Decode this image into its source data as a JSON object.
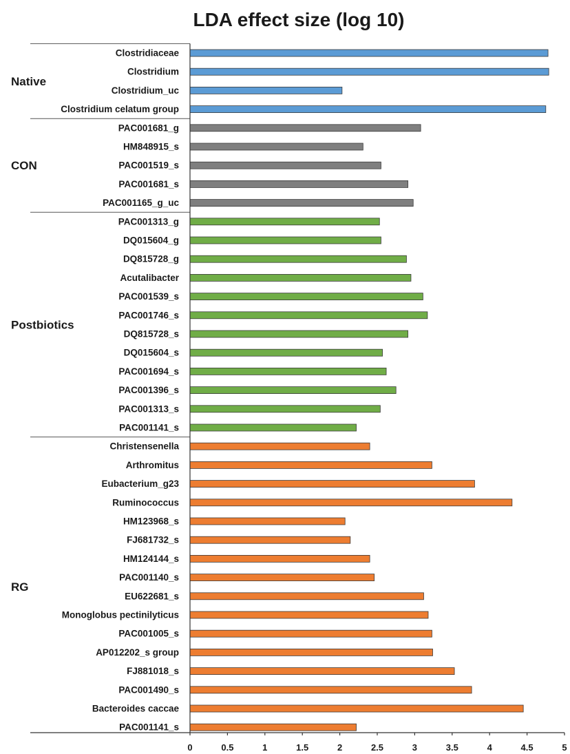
{
  "chart_data": {
    "type": "bar",
    "orientation": "horizontal",
    "title": "LDA effect size (log 10)",
    "xlim": [
      0,
      5
    ],
    "xticks": [
      "0",
      "0.5",
      "1",
      "1.5",
      "2",
      "2.5",
      "3",
      "3.5",
      "4",
      "4.5",
      "5"
    ],
    "legend": "none",
    "grid": false,
    "groups": [
      {
        "name": "Native",
        "color": "#5b9bd5",
        "items": [
          {
            "label": "Clostridiaceae",
            "value": 4.78
          },
          {
            "label": "Clostridium",
            "value": 4.79
          },
          {
            "label": "Clostridium_uc",
            "value": 2.03
          },
          {
            "label": "Clostridium celatum group",
            "value": 4.75
          }
        ]
      },
      {
        "name": "CON",
        "color": "#7f7f7f",
        "items": [
          {
            "label": "PAC001681_g",
            "value": 3.08
          },
          {
            "label": "HM848915_s",
            "value": 2.31
          },
          {
            "label": "PAC001519_s",
            "value": 2.55
          },
          {
            "label": "PAC001681_s",
            "value": 2.91
          },
          {
            "label": "PAC001165_g_uc",
            "value": 2.98
          }
        ]
      },
      {
        "name": "Postbiotics",
        "color": "#70ad47",
        "items": [
          {
            "label": "PAC001313_g",
            "value": 2.53
          },
          {
            "label": "DQ015604_g",
            "value": 2.55
          },
          {
            "label": "DQ815728_g",
            "value": 2.89
          },
          {
            "label": "Acutalibacter",
            "value": 2.95
          },
          {
            "label": "PAC001539_s",
            "value": 3.11
          },
          {
            "label": "PAC001746_s",
            "value": 3.17
          },
          {
            "label": "DQ815728_s",
            "value": 2.91
          },
          {
            "label": "DQ015604_s",
            "value": 2.57
          },
          {
            "label": "PAC001694_s",
            "value": 2.62
          },
          {
            "label": "PAC001396_s",
            "value": 2.75
          },
          {
            "label": "PAC001313_s",
            "value": 2.54
          },
          {
            "label": "PAC001141_s",
            "value": 2.22
          }
        ]
      },
      {
        "name": "RG",
        "color": "#ed7d31",
        "items": [
          {
            "label": "Christensenella",
            "value": 2.4
          },
          {
            "label": "Arthromitus",
            "value": 3.23
          },
          {
            "label": "Eubacterium_g23",
            "value": 3.8
          },
          {
            "label": "Ruminococcus",
            "value": 4.3
          },
          {
            "label": "HM123968_s",
            "value": 2.07
          },
          {
            "label": "FJ681732_s",
            "value": 2.14
          },
          {
            "label": "HM124144_s",
            "value": 2.4
          },
          {
            "label": "PAC001140_s",
            "value": 2.46
          },
          {
            "label": "EU622681_s",
            "value": 3.12
          },
          {
            "label": "Monoglobus pectinilyticus",
            "value": 3.18
          },
          {
            "label": "PAC001005_s",
            "value": 3.23
          },
          {
            "label": "AP012202_s group",
            "value": 3.24
          },
          {
            "label": "FJ881018_s",
            "value": 3.53
          },
          {
            "label": "PAC001490_s",
            "value": 3.76
          },
          {
            "label": "Bacteroides caccae",
            "value": 4.45
          },
          {
            "label": "PAC001141_s",
            "value": 2.22
          }
        ]
      }
    ]
  }
}
